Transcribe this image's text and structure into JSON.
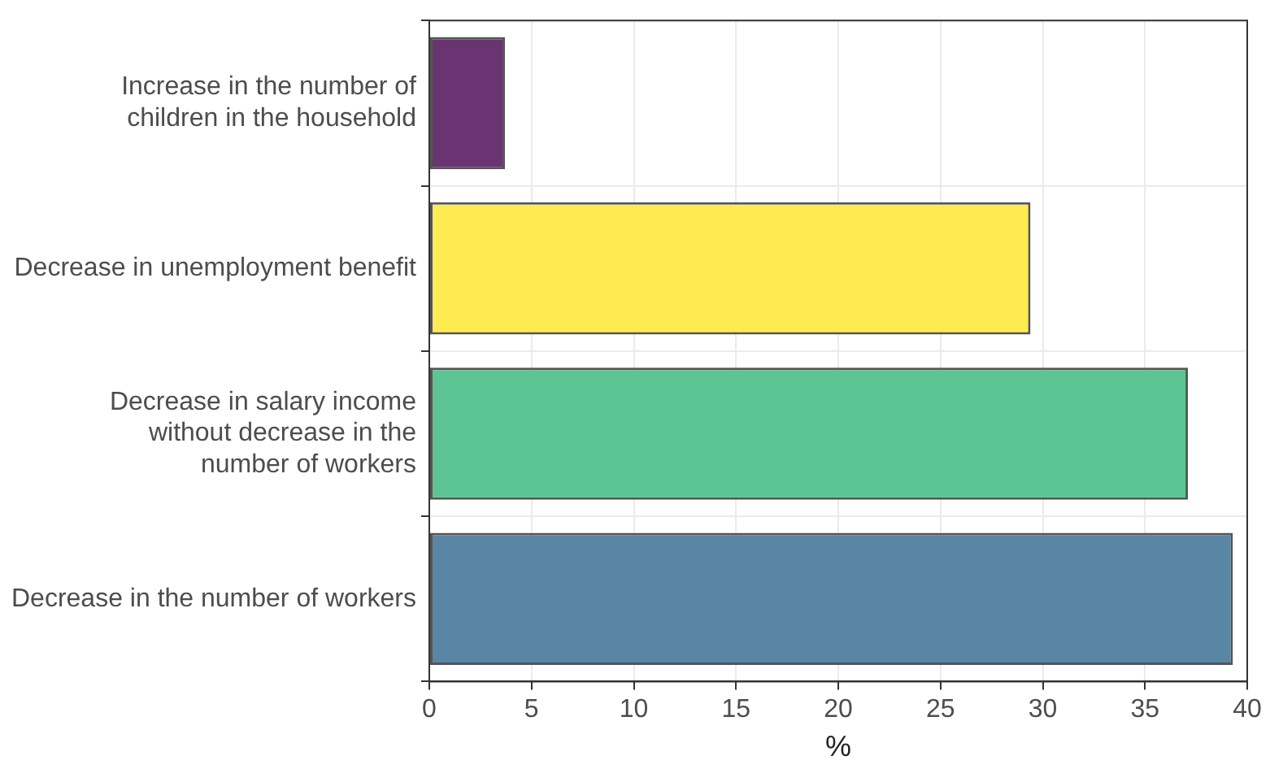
{
  "chart_data": {
    "type": "bar",
    "orientation": "horizontal",
    "xlabel": "%",
    "categories": [
      "Increase in the number of\nchildren in the household",
      "Decrease in unemployment benefit",
      "Decrease in salary income\nwithout decrease in the\nnumber of workers",
      "Decrease in the number of workers"
    ],
    "values": [
      3.7,
      29.4,
      37.1,
      39.3
    ],
    "colors": [
      "#693471",
      "#fdeb51",
      "#5dc594",
      "#5a86a5"
    ],
    "xlim": [
      0,
      40
    ],
    "xticks": [
      0,
      5,
      10,
      15,
      20,
      25,
      30,
      35,
      40
    ],
    "grid": true,
    "legend": false
  }
}
